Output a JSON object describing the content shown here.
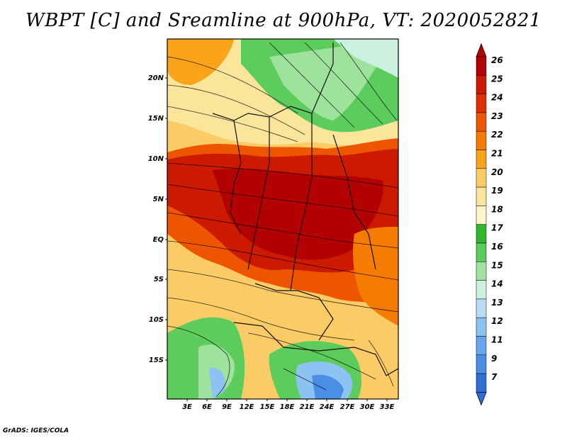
{
  "title": "WBPT [C] and Sreamline at 900hPa, VT: 2020052821",
  "credit": "GrADS: IGES/COLA",
  "map": {
    "lon_ticks": [
      "3E",
      "6E",
      "9E",
      "12E",
      "15E",
      "18E",
      "21E",
      "24E",
      "27E",
      "30E",
      "33E"
    ],
    "lat_ticks": [
      "20N",
      "15N",
      "10N",
      "5N",
      "EQ",
      "5S",
      "10S",
      "15S"
    ]
  },
  "colorbar": {
    "labels": [
      "26",
      "25",
      "24",
      "23",
      "22",
      "21",
      "20",
      "19",
      "18",
      "17",
      "16",
      "15",
      "14",
      "13",
      "12",
      "11",
      "9",
      "7"
    ],
    "colors": [
      "#b30000",
      "#cc1a00",
      "#e03000",
      "#ee5500",
      "#f57c00",
      "#fba41a",
      "#fbcc66",
      "#fbe59a",
      "#fdf5c8",
      "#2eb82e",
      "#5ccc5c",
      "#9ee29e",
      "#cdf1e0",
      "#b8dcf5",
      "#8cc3f2",
      "#66a8ee",
      "#4a8ee6",
      "#2f6fd8"
    ]
  }
}
